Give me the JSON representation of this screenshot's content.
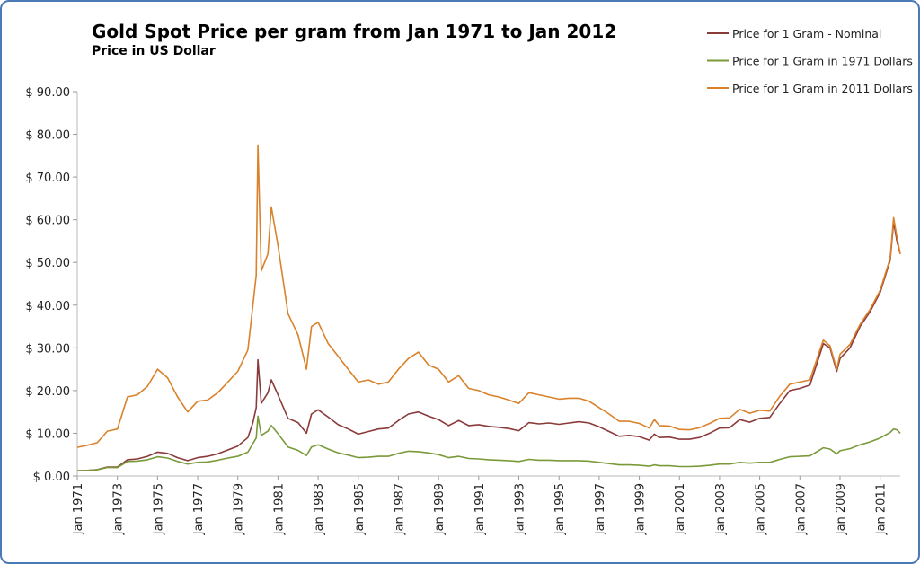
{
  "chart_data": {
    "type": "line",
    "title": "Gold Spot Price per gram from Jan 1971 to Jan 2012",
    "subtitle": "Price in US Dollar",
    "legend": "top-right",
    "grid": false,
    "xlim": [
      "Jan 1971",
      "Jan 2012"
    ],
    "xticks": [
      "Jan 1971",
      "Jan 1973",
      "Jan 1975",
      "Jan 1977",
      "Jan 1979",
      "Jan 1981",
      "Jan 1983",
      "Jan 1985",
      "Jan 1987",
      "Jan 1989",
      "Jan 1991",
      "Jan 1993",
      "Jan 1995",
      "Jan 1997",
      "Jan 1999",
      "Jan 2001",
      "Jan 2003",
      "Jan 2005",
      "Jan 2007",
      "Jan 2009",
      "Jan 2011"
    ],
    "ylim": [
      0,
      90
    ],
    "yticks": [
      {
        "value": 0,
        "label": "$ 0.00"
      },
      {
        "value": 10,
        "label": "$ 10.00"
      },
      {
        "value": 20,
        "label": "$ 20.00"
      },
      {
        "value": 30,
        "label": "$ 30.00"
      },
      {
        "value": 40,
        "label": "$ 40.00"
      },
      {
        "value": 50,
        "label": "$ 50.00"
      },
      {
        "value": 60,
        "label": "$ 60.00"
      },
      {
        "value": 70,
        "label": "$ 70.00"
      },
      {
        "value": 80,
        "label": "$ 80.00"
      },
      {
        "value": 90,
        "label": "$ 90.00"
      }
    ],
    "x": [
      "Jan 1971",
      "Jul 1971",
      "Jan 1972",
      "Jul 1972",
      "Jan 1973",
      "Jul 1973",
      "Jan 1974",
      "Jul 1974",
      "Jan 1975",
      "Jul 1975",
      "Jan 1976",
      "Jul 1976",
      "Jan 1977",
      "Jul 1977",
      "Jan 1978",
      "Jul 1978",
      "Jan 1979",
      "Jul 1979",
      "Oct 1979",
      "Dec 1979",
      "Jan 1980",
      "Mar 1980",
      "Jul 1980",
      "Sep 1980",
      "Jan 1981",
      "Jul 1981",
      "Jan 1982",
      "Jun 1982",
      "Sep 1982",
      "Jan 1983",
      "Jul 1983",
      "Jan 1984",
      "Jul 1984",
      "Jan 1985",
      "Jul 1985",
      "Jan 1986",
      "Jul 1986",
      "Jan 1987",
      "Jul 1987",
      "Jan 1988",
      "Jul 1988",
      "Jan 1989",
      "Jul 1989",
      "Jan 1990",
      "Jul 1990",
      "Jan 1991",
      "Jul 1991",
      "Jan 1992",
      "Jul 1992",
      "Jan 1993",
      "Jul 1993",
      "Jan 1994",
      "Jul 1994",
      "Jan 1995",
      "Jul 1995",
      "Jan 1996",
      "Jul 1996",
      "Jan 1997",
      "Jul 1997",
      "Jan 1998",
      "Jul 1998",
      "Jan 1999",
      "Jul 1999",
      "Oct 1999",
      "Jan 2000",
      "Jul 2000",
      "Jan 2001",
      "Jul 2001",
      "Jan 2002",
      "Jul 2002",
      "Jan 2003",
      "Jul 2003",
      "Jan 2004",
      "Jul 2004",
      "Jan 2005",
      "Jul 2005",
      "Jan 2006",
      "Jul 2006",
      "Jan 2007",
      "Jul 2007",
      "Jan 2008",
      "Mar 2008",
      "Jul 2008",
      "Nov 2008",
      "Jan 2009",
      "Jul 2009",
      "Jan 2010",
      "Jul 2010",
      "Jan 2011",
      "Jul 2011",
      "Sep 2011",
      "Nov 2011",
      "Jan 2012"
    ],
    "series": [
      {
        "name": "Price for 1 Gram - Nominal",
        "color": "#8b3a3a",
        "values": [
          1.21,
          1.3,
          1.5,
          2.1,
          2.1,
          3.8,
          4.0,
          4.6,
          5.6,
          5.3,
          4.3,
          3.6,
          4.3,
          4.6,
          5.2,
          6.1,
          7.0,
          9.0,
          12.5,
          16.0,
          27.2,
          17.0,
          19.5,
          22.5,
          19.0,
          13.5,
          12.5,
          10.0,
          14.5,
          15.5,
          13.8,
          12.0,
          11.0,
          9.8,
          10.4,
          11.0,
          11.2,
          13.0,
          14.5,
          15.0,
          14.0,
          13.2,
          11.8,
          13.0,
          11.8,
          12.0,
          11.6,
          11.4,
          11.1,
          10.6,
          12.5,
          12.2,
          12.4,
          12.1,
          12.4,
          12.7,
          12.4,
          11.5,
          10.4,
          9.3,
          9.5,
          9.2,
          8.4,
          9.8,
          9.0,
          9.1,
          8.6,
          8.6,
          9.0,
          10.0,
          11.2,
          11.3,
          13.2,
          12.6,
          13.5,
          13.7,
          17.0,
          20.0,
          20.5,
          21.3,
          28.5,
          31.0,
          30.0,
          24.5,
          27.5,
          30.0,
          35.0,
          38.5,
          43.0,
          50.5,
          59.5,
          55.0,
          52.0
        ]
      },
      {
        "name": "Price for 1 Gram in 1971 Dollars",
        "color": "#7a9a3a",
        "values": [
          1.21,
          1.28,
          1.45,
          2.0,
          1.95,
          3.4,
          3.5,
          3.8,
          4.5,
          4.2,
          3.4,
          2.8,
          3.2,
          3.3,
          3.7,
          4.2,
          4.6,
          5.6,
          7.6,
          8.9,
          14.0,
          9.5,
          10.5,
          11.8,
          9.9,
          6.8,
          6.0,
          4.8,
          6.8,
          7.3,
          6.3,
          5.4,
          4.9,
          4.3,
          4.4,
          4.6,
          4.6,
          5.3,
          5.8,
          5.7,
          5.4,
          5.0,
          4.3,
          4.6,
          4.1,
          4.0,
          3.8,
          3.7,
          3.6,
          3.4,
          3.9,
          3.7,
          3.7,
          3.6,
          3.6,
          3.6,
          3.5,
          3.2,
          2.9,
          2.6,
          2.6,
          2.5,
          2.3,
          2.6,
          2.4,
          2.4,
          2.2,
          2.2,
          2.3,
          2.5,
          2.8,
          2.8,
          3.2,
          3.0,
          3.2,
          3.2,
          3.9,
          4.5,
          4.6,
          4.7,
          6.1,
          6.6,
          6.3,
          5.2,
          5.9,
          6.4,
          7.3,
          8.0,
          8.9,
          10.2,
          11.0,
          10.8,
          10.0
        ]
      },
      {
        "name": "Price for 1 Gram in 2011 Dollars",
        "color": "#d9822b",
        "values": [
          6.7,
          7.2,
          7.8,
          10.5,
          11.0,
          18.5,
          19.0,
          21.0,
          25.0,
          23.0,
          18.5,
          15.0,
          17.5,
          17.8,
          19.5,
          22.0,
          24.5,
          29.5,
          40.0,
          47.0,
          77.5,
          48.0,
          52.0,
          63.0,
          54.0,
          38.0,
          33.0,
          25.0,
          35.0,
          36.0,
          31.0,
          28.0,
          25.0,
          22.0,
          22.5,
          21.5,
          22.0,
          25.0,
          27.5,
          29.0,
          26.0,
          25.0,
          22.0,
          23.5,
          20.5,
          20.0,
          19.0,
          18.5,
          17.8,
          17.0,
          19.5,
          19.0,
          18.5,
          18.0,
          18.2,
          18.2,
          17.5,
          16.0,
          14.5,
          12.8,
          12.8,
          12.3,
          11.2,
          13.2,
          11.8,
          11.7,
          10.9,
          10.8,
          11.3,
          12.3,
          13.5,
          13.6,
          15.6,
          14.7,
          15.4,
          15.2,
          18.7,
          21.5,
          22.0,
          22.5,
          29.5,
          31.8,
          30.5,
          25.0,
          28.5,
          30.8,
          35.5,
          39.0,
          43.5,
          51.0,
          60.5,
          56.0,
          52.0
        ]
      }
    ]
  }
}
